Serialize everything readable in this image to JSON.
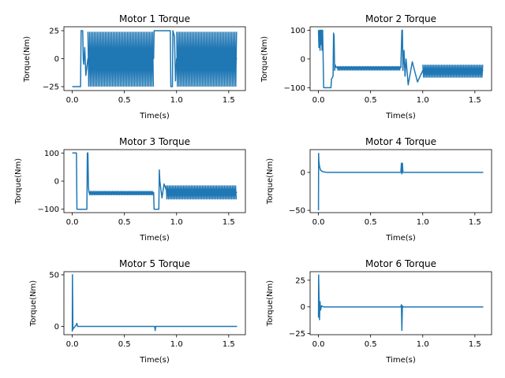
{
  "colors": {
    "line": "#1f77b4",
    "axes": "#000000",
    "background": "#ffffff"
  },
  "chart_data": [
    {
      "type": "line",
      "title": "Motor 1 Torque",
      "xlabel": "Time(s)",
      "ylabel": "Torque(Nm)",
      "xlim": [
        -0.08,
        1.66
      ],
      "ylim": [
        -28.5,
        28.5
      ],
      "xticks": [
        0,
        0.5,
        1,
        1.5
      ],
      "xtick_labels": [
        "0.0",
        "0.5",
        "1.0",
        "1.5"
      ],
      "yticks": [
        -25,
        0,
        25
      ],
      "ytick_labels": [
        "−25",
        "0",
        "25"
      ],
      "grid": false,
      "series": [
        {
          "x": [
            0,
            0.08,
            0.085,
            0.09,
            0.1,
            0.105,
            0.11,
            0.12,
            0.13,
            0.15,
            0.78,
            0.785,
            0.8,
            0.94,
            0.945,
            0.96,
            0.965,
            0.98,
            0.99,
            1.0,
            1.58
          ],
          "y": [
            -25,
            -25,
            25,
            25,
            25,
            0,
            -5,
            10,
            -15,
            0,
            0,
            25,
            25,
            25,
            -25,
            -25,
            25,
            20,
            -20,
            0,
            0
          ],
          "oscillation": [
            {
              "x_start": 0.15,
              "x_end": 0.78,
              "y_min": -25,
              "y_max": 24
            },
            {
              "x_start": 1.0,
              "x_end": 1.58,
              "y_min": -25,
              "y_max": 24
            }
          ]
        }
      ]
    },
    {
      "type": "line",
      "title": "Motor 2 Torque",
      "xlabel": "Time(s)",
      "ylabel": "Torque(Nm)",
      "xlim": [
        -0.08,
        1.66
      ],
      "ylim": [
        -110,
        112
      ],
      "xticks": [
        0,
        0.5,
        1,
        1.5
      ],
      "xtick_labels": [
        "0.0",
        "0.5",
        "1.0",
        "1.5"
      ],
      "yticks": [
        -100,
        0,
        100
      ],
      "ytick_labels": [
        "−100",
        "0",
        "100"
      ],
      "grid": false,
      "series": [
        {
          "x": [
            0,
            0.005,
            0.01,
            0.015,
            0.02,
            0.025,
            0.03,
            0.035,
            0.04,
            0.05,
            0.06,
            0.12,
            0.125,
            0.14,
            0.145,
            0.15,
            0.155,
            0.16,
            0.17,
            0.18,
            0.79,
            0.8,
            0.805,
            0.81,
            0.82,
            0.83,
            0.84,
            0.86,
            0.9,
            0.95,
            1.0,
            1.58
          ],
          "y": [
            100,
            40,
            100,
            30,
            100,
            50,
            100,
            30,
            100,
            -100,
            -100,
            -100,
            -70,
            -60,
            90,
            80,
            -40,
            -20,
            -30,
            -30,
            -30,
            100,
            100,
            -40,
            30,
            -60,
            0,
            -90,
            -10,
            -80,
            -40,
            -40
          ],
          "oscillation": [
            {
              "x_start": 0.18,
              "x_end": 0.79,
              "y_min": -40,
              "y_max": -25
            },
            {
              "x_start": 1.0,
              "x_end": 1.58,
              "y_min": -65,
              "y_max": -20
            }
          ]
        }
      ]
    },
    {
      "type": "line",
      "title": "Motor 3 Torque",
      "xlabel": "Time(s)",
      "ylabel": "Torque(Nm)",
      "xlim": [
        -0.08,
        1.66
      ],
      "ylim": [
        -112,
        112
      ],
      "xticks": [
        0,
        0.5,
        1,
        1.5
      ],
      "xtick_labels": [
        "0.0",
        "0.5",
        "1.0",
        "1.5"
      ],
      "yticks": [
        -100,
        0,
        100
      ],
      "ytick_labels": [
        "−100",
        "0",
        "100"
      ],
      "grid": false,
      "series": [
        {
          "x": [
            0,
            0.04,
            0.045,
            0.14,
            0.145,
            0.15,
            0.155,
            0.16,
            0.2,
            0.78,
            0.785,
            0.83,
            0.835,
            0.84,
            0.86,
            0.88,
            0.9,
            1.0,
            1.58
          ],
          "y": [
            100,
            100,
            -100,
            -100,
            100,
            100,
            -20,
            -40,
            -40,
            -40,
            -100,
            -100,
            40,
            0,
            -60,
            -10,
            -30,
            -40,
            -40
          ],
          "oscillation": [
            {
              "x_start": 0.16,
              "x_end": 0.78,
              "y_min": -50,
              "y_max": -35
            },
            {
              "x_start": 0.9,
              "x_end": 1.58,
              "y_min": -65,
              "y_max": -15
            }
          ]
        }
      ]
    },
    {
      "type": "line",
      "title": "Motor 4 Torque",
      "xlabel": "Time(s)",
      "ylabel": "Torque(Nm)",
      "xlim": [
        -0.08,
        1.66
      ],
      "ylim": [
        -53,
        30
      ],
      "xticks": [
        0,
        0.5,
        1,
        1.5
      ],
      "xtick_labels": [
        "0.0",
        "0.5",
        "1.0",
        "1.5"
      ],
      "yticks": [
        -50,
        0
      ],
      "ytick_labels": [
        "−50",
        "0"
      ],
      "grid": false,
      "series": [
        {
          "x": [
            0,
            0.002,
            0.004,
            0.01,
            0.02,
            0.04,
            0.08,
            0.79,
            0.795,
            0.8,
            0.805,
            0.81,
            1.58
          ],
          "y": [
            -50,
            25,
            15,
            8,
            3,
            1,
            0,
            0,
            12,
            -2,
            12,
            0,
            0
          ]
        }
      ]
    },
    {
      "type": "line",
      "title": "Motor 5 Torque",
      "xlabel": "Time(s)",
      "ylabel": "Torque(Nm)",
      "xlim": [
        -0.08,
        1.66
      ],
      "ylim": [
        -8,
        53
      ],
      "xticks": [
        0,
        0.5,
        1,
        1.5
      ],
      "xtick_labels": [
        "0.0",
        "0.5",
        "1.0",
        "1.5"
      ],
      "yticks": [
        0,
        50
      ],
      "ytick_labels": [
        "0",
        "50"
      ],
      "grid": false,
      "series": [
        {
          "x": [
            0,
            0.002,
            0.006,
            0.01,
            0.02,
            0.04,
            0.045,
            0.05,
            0.06,
            0.79,
            0.795,
            0.8,
            1.58
          ],
          "y": [
            -5,
            50,
            -3,
            -2,
            -1,
            2,
            3,
            0,
            0,
            0,
            -4,
            0,
            0
          ]
        }
      ]
    },
    {
      "type": "line",
      "title": "Motor 6 Torque",
      "xlabel": "Time(s)",
      "ylabel": "Torque(Nm)",
      "xlim": [
        -0.08,
        1.66
      ],
      "ylim": [
        -26,
        33
      ],
      "xticks": [
        0,
        0.5,
        1,
        1.5
      ],
      "xtick_labels": [
        "0.0",
        "0.5",
        "1.0",
        "1.5"
      ],
      "yticks": [
        -25,
        0,
        25
      ],
      "ytick_labels": [
        "−25",
        "0",
        "25"
      ],
      "grid": false,
      "series": [
        {
          "x": [
            0,
            0.002,
            0.01,
            0.015,
            0.02,
            0.03,
            0.05,
            0.1,
            0.79,
            0.795,
            0.8,
            0.805,
            0.81,
            1.58
          ],
          "y": [
            -10,
            30,
            -12,
            5,
            -3,
            1,
            0,
            0,
            0,
            2,
            -22,
            1,
            0,
            0
          ]
        }
      ]
    }
  ]
}
